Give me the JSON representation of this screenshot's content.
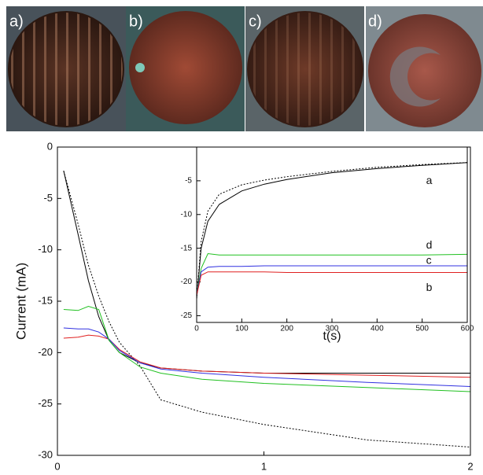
{
  "panels": [
    "a)",
    "b)",
    "c)",
    "d)"
  ],
  "chart_data": [
    {
      "type": "line",
      "ylabel": "Current (mA)",
      "x": [
        0.03,
        0.1,
        0.15,
        0.2,
        0.25,
        0.3,
        0.4,
        0.5,
        0.7,
        1.0,
        1.5,
        2.0
      ],
      "xlim": [
        0,
        2
      ],
      "xticks": [
        0,
        1,
        2
      ],
      "ylim": [
        -30,
        0
      ],
      "yticks": [
        0,
        -5,
        -10,
        -15,
        -20,
        -25,
        -30
      ],
      "series": [
        {
          "color": "#000000",
          "style": "solid",
          "values": [
            -2.3,
            -8.5,
            -13,
            -16.5,
            -18.8,
            -20.0,
            -21.0,
            -21.5,
            -21.8,
            -22.0,
            -22.0,
            -22.0
          ]
        },
        {
          "color": "#000000",
          "style": "dotted",
          "values": [
            -2.3,
            -7.5,
            -11.5,
            -14.5,
            -17.0,
            -19.0,
            -21.3,
            -24.6,
            -25.8,
            -27.0,
            -28.5,
            -29.2
          ]
        },
        {
          "color": "#e02020",
          "style": "solid",
          "values": [
            -18.6,
            -18.5,
            -18.3,
            -18.4,
            -18.7,
            -19.7,
            -20.9,
            -21.5,
            -21.8,
            -22.0,
            -22.2,
            -22.4
          ]
        },
        {
          "color": "#3030e0",
          "style": "solid",
          "values": [
            -17.6,
            -17.7,
            -17.7,
            -18.0,
            -18.7,
            -19.8,
            -21.0,
            -21.6,
            -22.0,
            -22.4,
            -22.9,
            -23.3
          ]
        },
        {
          "color": "#20c020",
          "style": "solid",
          "values": [
            -15.8,
            -15.9,
            -15.5,
            -15.8,
            -18.8,
            -20.0,
            -21.4,
            -22.0,
            -22.6,
            -23.0,
            -23.4,
            -23.8
          ]
        }
      ]
    },
    {
      "type": "line",
      "xlabel": "t(s)",
      "x": [
        0,
        10,
        25,
        50,
        100,
        150,
        200,
        300,
        400,
        500,
        600
      ],
      "xlim": [
        0,
        600
      ],
      "xticks": [
        0,
        100,
        200,
        300,
        400,
        500,
        600
      ],
      "ylim": [
        -26,
        0
      ],
      "yticks": [
        -5,
        -10,
        -15,
        -20,
        -25
      ],
      "series": [
        {
          "name": "a",
          "color": "#000000",
          "style": "solid",
          "values": [
            -22.5,
            -15,
            -11,
            -8.5,
            -6.5,
            -5.5,
            -4.8,
            -3.8,
            -3.2,
            -2.7,
            -2.3
          ]
        },
        {
          "color": "#000000",
          "style": "dotted",
          "values": [
            -22.5,
            -14,
            -9.5,
            -7,
            -5.6,
            -4.9,
            -4.4,
            -3.6,
            -3.0,
            -2.6,
            -2.3
          ]
        },
        {
          "name": "d",
          "color": "#20c020",
          "style": "solid",
          "values": [
            -22,
            -18,
            -15.8,
            -16.0,
            -16.0,
            -16.0,
            -16.0,
            -16.0,
            -16.0,
            -16.0,
            -15.9
          ]
        },
        {
          "name": "c",
          "color": "#3030e0",
          "style": "solid",
          "values": [
            -22,
            -18.5,
            -17.8,
            -17.7,
            -17.7,
            -17.6,
            -17.6,
            -17.6,
            -17.6,
            -17.6,
            -17.6
          ]
        },
        {
          "name": "b",
          "color": "#e02020",
          "style": "solid",
          "values": [
            -22,
            -19,
            -18.5,
            -18.5,
            -18.5,
            -18.5,
            -18.6,
            -18.6,
            -18.6,
            -18.6,
            -18.6
          ]
        }
      ]
    }
  ]
}
